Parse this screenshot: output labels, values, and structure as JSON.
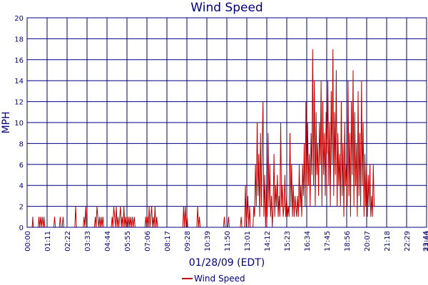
{
  "chart_data": {
    "type": "line",
    "title": "Wind Speed",
    "ylabel": "MPH",
    "xlabel": "01/28/09 (EDT)",
    "ylim": [
      0,
      20
    ],
    "yticks": [
      "0",
      "2",
      "4",
      "6",
      "8",
      "10",
      "12",
      "14",
      "16",
      "18",
      "20"
    ],
    "xticks": [
      "00:00",
      "01:11",
      "02:22",
      "03:33",
      "04:44",
      "05:55",
      "07:06",
      "08:17",
      "09:28",
      "10:39",
      "11:50",
      "13:01",
      "14:12",
      "15:23",
      "16:34",
      "17:45",
      "18:56",
      "20:07",
      "21:18",
      "22:29",
      "23:40",
      "23:44"
    ],
    "grid": true,
    "legend_position": "bottom",
    "series": [
      {
        "name": "Wind Speed",
        "color": "#c00000",
        "x_range_minutes": [
          0,
          1424
        ],
        "points": [
          [
            0,
            0
          ],
          [
            18,
            0
          ],
          [
            20,
            1
          ],
          [
            22,
            0
          ],
          [
            40,
            0
          ],
          [
            42,
            1
          ],
          [
            45,
            0
          ],
          [
            48,
            1
          ],
          [
            51,
            0
          ],
          [
            54,
            1
          ],
          [
            58,
            0
          ],
          [
            60,
            1
          ],
          [
            63,
            0
          ],
          [
            95,
            0
          ],
          [
            98,
            1
          ],
          [
            101,
            0
          ],
          [
            115,
            0
          ],
          [
            118,
            1
          ],
          [
            121,
            0
          ],
          [
            125,
            0
          ],
          [
            128,
            1
          ],
          [
            131,
            0
          ],
          [
            170,
            0
          ],
          [
            173,
            2
          ],
          [
            176,
            0
          ],
          [
            200,
            0
          ],
          [
            203,
            1
          ],
          [
            206,
            0
          ],
          [
            209,
            2
          ],
          [
            212,
            0
          ],
          [
            240,
            0
          ],
          [
            243,
            1
          ],
          [
            246,
            0
          ],
          [
            249,
            2
          ],
          [
            252,
            1
          ],
          [
            255,
            0
          ],
          [
            258,
            1
          ],
          [
            261,
            0
          ],
          [
            264,
            1
          ],
          [
            267,
            0
          ],
          [
            270,
            1
          ],
          [
            273,
            0
          ],
          [
            300,
            0
          ],
          [
            303,
            1
          ],
          [
            306,
            0
          ],
          [
            309,
            2
          ],
          [
            312,
            1
          ],
          [
            315,
            0
          ],
          [
            318,
            2
          ],
          [
            321,
            0
          ],
          [
            324,
            1
          ],
          [
            327,
            0
          ],
          [
            330,
            1
          ],
          [
            333,
            2
          ],
          [
            336,
            0
          ],
          [
            339,
            1
          ],
          [
            342,
            0
          ],
          [
            345,
            2
          ],
          [
            348,
            0
          ],
          [
            351,
            1
          ],
          [
            354,
            0
          ],
          [
            357,
            1
          ],
          [
            360,
            0
          ],
          [
            363,
            1
          ],
          [
            366,
            0
          ],
          [
            369,
            1
          ],
          [
            372,
            0
          ],
          [
            375,
            1
          ],
          [
            378,
            0
          ],
          [
            382,
            1
          ],
          [
            385,
            0
          ],
          [
            420,
            0
          ],
          [
            423,
            1
          ],
          [
            426,
            0
          ],
          [
            429,
            1
          ],
          [
            432,
            0
          ],
          [
            435,
            2
          ],
          [
            438,
            0
          ],
          [
            441,
            1
          ],
          [
            444,
            2
          ],
          [
            447,
            0
          ],
          [
            450,
            1
          ],
          [
            453,
            0
          ],
          [
            456,
            2
          ],
          [
            459,
            0
          ],
          [
            462,
            1
          ],
          [
            465,
            0
          ],
          [
            555,
            0
          ],
          [
            558,
            2
          ],
          [
            561,
            0
          ],
          [
            564,
            2
          ],
          [
            567,
            0
          ],
          [
            570,
            1
          ],
          [
            573,
            0
          ],
          [
            605,
            0
          ],
          [
            608,
            2
          ],
          [
            611,
            0
          ],
          [
            614,
            1
          ],
          [
            617,
            0
          ],
          [
            700,
            0
          ],
          [
            703,
            1
          ],
          [
            706,
            0
          ],
          [
            715,
            0
          ],
          [
            718,
            1
          ],
          [
            721,
            0
          ],
          [
            760,
            0
          ],
          [
            763,
            1
          ],
          [
            766,
            0
          ],
          [
            775,
            0
          ],
          [
            778,
            4
          ],
          [
            781,
            0
          ],
          [
            784,
            1
          ],
          [
            787,
            3
          ],
          [
            790,
            0
          ],
          [
            793,
            2
          ],
          [
            796,
            0
          ],
          [
            805,
            0
          ],
          [
            808,
            2
          ],
          [
            811,
            1
          ],
          [
            814,
            6
          ],
          [
            817,
            2
          ],
          [
            820,
            10
          ],
          [
            823,
            3
          ],
          [
            826,
            7
          ],
          [
            829,
            1
          ],
          [
            832,
            9
          ],
          [
            835,
            2
          ],
          [
            838,
            8
          ],
          [
            841,
            12
          ],
          [
            844,
            1
          ],
          [
            847,
            5
          ],
          [
            850,
            0
          ],
          [
            853,
            4
          ],
          [
            856,
            1
          ],
          [
            859,
            9
          ],
          [
            862,
            2
          ],
          [
            865,
            6
          ],
          [
            868,
            1
          ],
          [
            871,
            3
          ],
          [
            874,
            0
          ],
          [
            877,
            2
          ],
          [
            880,
            7
          ],
          [
            883,
            1
          ],
          [
            886,
            4
          ],
          [
            889,
            2
          ],
          [
            892,
            5
          ],
          [
            895,
            1
          ],
          [
            898,
            3
          ],
          [
            901,
            1
          ],
          [
            904,
            10
          ],
          [
            907,
            2
          ],
          [
            910,
            4
          ],
          [
            913,
            1
          ],
          [
            916,
            2
          ],
          [
            919,
            5
          ],
          [
            922,
            1
          ],
          [
            925,
            3
          ],
          [
            928,
            1
          ],
          [
            931,
            2
          ],
          [
            934,
            1
          ],
          [
            937,
            9
          ],
          [
            940,
            2
          ],
          [
            943,
            6
          ],
          [
            946,
            1
          ],
          [
            949,
            4
          ],
          [
            952,
            1
          ],
          [
            955,
            3
          ],
          [
            958,
            2
          ],
          [
            961,
            1
          ],
          [
            964,
            3
          ],
          [
            967,
            1
          ],
          [
            970,
            6
          ],
          [
            973,
            2
          ],
          [
            976,
            4
          ],
          [
            979,
            1
          ],
          [
            982,
            6
          ],
          [
            985,
            3
          ],
          [
            988,
            8
          ],
          [
            991,
            2
          ],
          [
            994,
            12
          ],
          [
            997,
            3
          ],
          [
            1000,
            10
          ],
          [
            1003,
            4
          ],
          [
            1006,
            7
          ],
          [
            1009,
            2
          ],
          [
            1012,
            9
          ],
          [
            1015,
            5
          ],
          [
            1018,
            17
          ],
          [
            1021,
            4
          ],
          [
            1024,
            14
          ],
          [
            1027,
            2
          ],
          [
            1030,
            11
          ],
          [
            1033,
            5
          ],
          [
            1036,
            8
          ],
          [
            1039,
            3
          ],
          [
            1042,
            10
          ],
          [
            1045,
            6
          ],
          [
            1048,
            14
          ],
          [
            1051,
            2
          ],
          [
            1054,
            12
          ],
          [
            1057,
            5
          ],
          [
            1060,
            9
          ],
          [
            1063,
            3
          ],
          [
            1066,
            11
          ],
          [
            1069,
            7
          ],
          [
            1072,
            14
          ],
          [
            1075,
            4
          ],
          [
            1078,
            10
          ],
          [
            1081,
            2
          ],
          [
            1084,
            13
          ],
          [
            1087,
            6
          ],
          [
            1090,
            17
          ],
          [
            1093,
            3
          ],
          [
            1096,
            11
          ],
          [
            1099,
            5
          ],
          [
            1102,
            15
          ],
          [
            1105,
            2
          ],
          [
            1108,
            9
          ],
          [
            1111,
            4
          ],
          [
            1114,
            7
          ],
          [
            1117,
            2
          ],
          [
            1120,
            12
          ],
          [
            1123,
            3
          ],
          [
            1126,
            8
          ],
          [
            1129,
            1
          ],
          [
            1132,
            10
          ],
          [
            1135,
            4
          ],
          [
            1138,
            6
          ],
          [
            1141,
            2
          ],
          [
            1144,
            14
          ],
          [
            1147,
            3
          ],
          [
            1150,
            9
          ],
          [
            1153,
            1
          ],
          [
            1156,
            12
          ],
          [
            1159,
            5
          ],
          [
            1162,
            15
          ],
          [
            1165,
            2
          ],
          [
            1168,
            11
          ],
          [
            1171,
            4
          ],
          [
            1174,
            8
          ],
          [
            1177,
            1
          ],
          [
            1180,
            13
          ],
          [
            1183,
            3
          ],
          [
            1186,
            9
          ],
          [
            1189,
            2
          ],
          [
            1192,
            14
          ],
          [
            1195,
            4
          ],
          [
            1198,
            10
          ],
          [
            1201,
            1
          ],
          [
            1204,
            7
          ],
          [
            1207,
            2
          ],
          [
            1210,
            6
          ],
          [
            1213,
            1
          ],
          [
            1216,
            5
          ],
          [
            1219,
            2
          ],
          [
            1222,
            6
          ],
          [
            1225,
            1
          ],
          [
            1228,
            3
          ],
          [
            1231,
            1
          ],
          [
            1234,
            6
          ],
          [
            1237,
            2
          ]
        ]
      }
    ]
  }
}
